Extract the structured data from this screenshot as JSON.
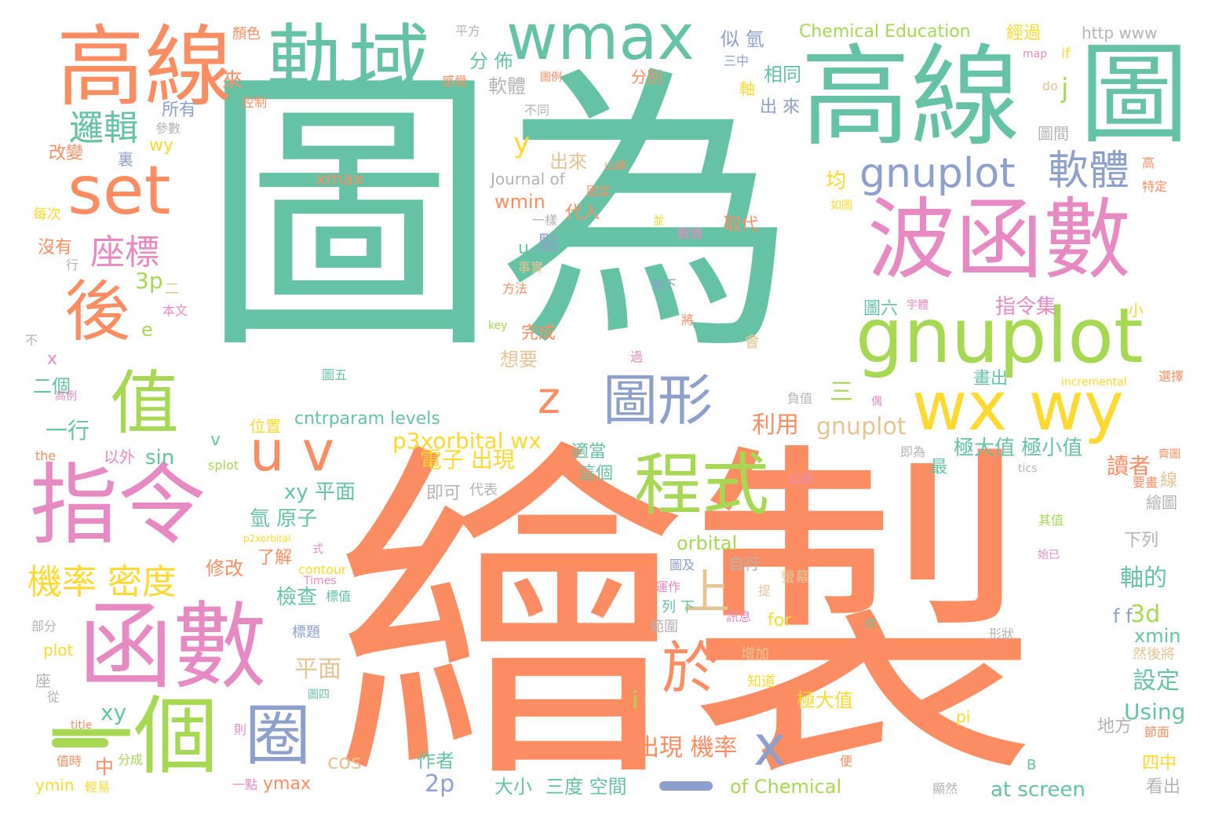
{
  "palette": {
    "teal": "#66c2a5",
    "orange": "#fc8d62",
    "blue": "#8da0cb",
    "pink": "#e78ac3",
    "lime": "#a6d854",
    "yellow": "#ffd92f",
    "tan": "#e5c494",
    "gray": "#b3b3b3"
  },
  "words": [
    {
      "text": "圖為",
      "color": "#66c2a5"
    },
    {
      "text": "繪製",
      "color": "#fc8d62"
    },
    {
      "text": "高線",
      "color": "#fc8d62"
    },
    {
      "text": "軌域",
      "color": "#66c2a5"
    },
    {
      "text": "wmax",
      "color": "#66c2a5"
    },
    {
      "text": "高線",
      "color": "#66c2a5"
    },
    {
      "text": "圖",
      "color": "#66c2a5"
    },
    {
      "text": "set",
      "color": "#fc8d62"
    },
    {
      "text": "波函數",
      "color": "#e78ac3"
    },
    {
      "text": "gnuplot",
      "color": "#a6d854"
    },
    {
      "text": "gnuplot",
      "color": "#8da0cb"
    },
    {
      "text": "軟體",
      "color": "#8da0cb"
    },
    {
      "text": "後",
      "color": "#fc8d62"
    },
    {
      "text": "值",
      "color": "#a6d854"
    },
    {
      "text": "指令",
      "color": "#e78ac3"
    },
    {
      "text": "函數",
      "color": "#e78ac3"
    },
    {
      "text": "一個",
      "color": "#a6d854"
    },
    {
      "text": "u v",
      "color": "#fc8d62"
    },
    {
      "text": "圖形",
      "color": "#8da0cb"
    },
    {
      "text": "程式",
      "color": "#a6d854"
    },
    {
      "text": "wx wy",
      "color": "#ffd92f"
    },
    {
      "text": "z",
      "color": "#fc8d62"
    },
    {
      "text": "x",
      "color": "#8da0cb"
    },
    {
      "text": "上",
      "color": "#e5c494"
    },
    {
      "text": "於",
      "color": "#fc8d62"
    },
    {
      "text": "圈",
      "color": "#8da0cb"
    },
    {
      "text": "邏輯",
      "color": "#66c2a5"
    },
    {
      "text": "座標",
      "color": "#e78ac3"
    },
    {
      "text": "機率 密度",
      "color": "#ffd92f"
    },
    {
      "text": "xmax",
      "color": "#fc8d62"
    },
    {
      "text": "Chemical Education",
      "color": "#a6d854"
    },
    {
      "text": "Journal of",
      "color": "#b3b3b3"
    },
    {
      "text": "http www",
      "color": "#b3b3b3"
    },
    {
      "text": "分 佈",
      "color": "#66c2a5"
    },
    {
      "text": "軟體",
      "color": "#b3b3b3"
    },
    {
      "text": "出來",
      "color": "#e5c494"
    },
    {
      "text": "wmin",
      "color": "#fc8d62"
    },
    {
      "text": "y",
      "color": "#ffd92f"
    },
    {
      "text": "j",
      "color": "#a6d854"
    },
    {
      "text": "相同",
      "color": "#66c2a5"
    },
    {
      "text": "出 來",
      "color": "#8da0cb"
    },
    {
      "text": "似 氫",
      "color": "#8da0cb"
    },
    {
      "text": "經過",
      "color": "#ffd92f"
    },
    {
      "text": "指令集",
      "color": "#e78ac3"
    },
    {
      "text": "均",
      "color": "#ffd92f"
    },
    {
      "text": "取代",
      "color": "#fc8d62"
    },
    {
      "text": "代入",
      "color": "#fc8d62"
    },
    {
      "text": "u",
      "color": "#66c2a5"
    },
    {
      "text": "點",
      "color": "#8da0cb"
    },
    {
      "text": "3p",
      "color": "#a6d854"
    },
    {
      "text": "完成",
      "color": "#fc8d62"
    },
    {
      "text": "想要",
      "color": "#e5c494"
    },
    {
      "text": "p3xorbital wx",
      "color": "#ffd92f"
    },
    {
      "text": "利用",
      "color": "#fc8d62"
    },
    {
      "text": "gnuplot",
      "color": "#e5c494"
    },
    {
      "text": "三",
      "color": "#a6d854"
    },
    {
      "text": "電子 出現",
      "color": "#ffd92f"
    },
    {
      "text": "cntrparam levels",
      "color": "#66c2a5"
    },
    {
      "text": "極大值 極小值",
      "color": "#66c2a5"
    },
    {
      "text": "讀者",
      "color": "#fc8d62"
    },
    {
      "text": "適當",
      "color": "#66c2a5"
    },
    {
      "text": "這個",
      "color": "#66c2a5"
    },
    {
      "text": "xy 平面",
      "color": "#66c2a5"
    },
    {
      "text": "即可",
      "color": "#b3b3b3"
    },
    {
      "text": "代表",
      "color": "#b3b3b3"
    },
    {
      "text": "氫 原子",
      "color": "#66c2a5"
    },
    {
      "text": "orbital",
      "color": "#a6d854"
    },
    {
      "text": "了解",
      "color": "#fc8d62"
    },
    {
      "text": "修改",
      "color": "#fc8d62"
    },
    {
      "text": "自行",
      "color": "#b3b3b3"
    },
    {
      "text": "軸的",
      "color": "#66c2a5"
    },
    {
      "text": "檢查",
      "color": "#66c2a5"
    },
    {
      "text": "for",
      "color": "#ffd92f"
    },
    {
      "text": "f f",
      "color": "#8da0cb"
    },
    {
      "text": "3d",
      "color": "#a6d854"
    },
    {
      "text": "xmin",
      "color": "#66c2a5"
    },
    {
      "text": "設定",
      "color": "#66c2a5"
    },
    {
      "text": "平面",
      "color": "#e5c494"
    },
    {
      "text": "極大值",
      "color": "#ffd92f"
    },
    {
      "text": "Using",
      "color": "#66c2a5"
    },
    {
      "text": "出現 機率",
      "color": "#fc8d62"
    },
    {
      "text": "xy",
      "color": "#66c2a5"
    },
    {
      "text": "cos",
      "color": "#e5c494"
    },
    {
      "text": "2p",
      "color": "#8da0cb"
    },
    {
      "text": "作者",
      "color": "#66c2a5"
    },
    {
      "text": "大小",
      "color": "#66c2a5"
    },
    {
      "text": "三度 空間",
      "color": "#66c2a5"
    },
    {
      "text": "of Chemical",
      "color": "#a6d854"
    },
    {
      "text": "at screen",
      "color": "#66c2a5"
    },
    {
      "text": "ymax",
      "color": "#fc8d62"
    },
    {
      "text": "ymin",
      "color": "#ffd92f"
    },
    {
      "text": "中",
      "color": "#fc8d62"
    },
    {
      "text": "sin",
      "color": "#66c2a5"
    },
    {
      "text": "一行",
      "color": "#66c2a5"
    },
    {
      "text": "以外",
      "color": "#e78ac3"
    },
    {
      "text": "二個",
      "color": "#66c2a5"
    },
    {
      "text": "四中",
      "color": "#ffd92f"
    },
    {
      "text": "看出",
      "color": "#b3b3b3"
    },
    {
      "text": "地方",
      "color": "#b3b3b3"
    },
    {
      "text": "圖間",
      "color": "#b3b3b3"
    },
    {
      "text": "所有",
      "color": "#8da0cb"
    },
    {
      "text": "來",
      "color": "#fc8d62"
    },
    {
      "text": "改變",
      "color": "#fc8d62"
    },
    {
      "text": "沒有",
      "color": "#fc8d62"
    },
    {
      "text": "顏色",
      "color": "#fc8d62"
    },
    {
      "text": "平方",
      "color": "#b3b3b3"
    },
    {
      "text": "wy",
      "color": "#ffd92f"
    },
    {
      "text": "裏",
      "color": "#8da0cb"
    },
    {
      "text": "每次",
      "color": "#ffd92f"
    },
    {
      "text": "e",
      "color": "#a6d854"
    },
    {
      "text": "x",
      "color": "#e78ac3"
    },
    {
      "text": "不",
      "color": "#b3b3b3"
    },
    {
      "text": "v",
      "color": "#66c2a5"
    },
    {
      "text": "i",
      "color": "#a6d854"
    },
    {
      "text": "位置",
      "color": "#ffd92f"
    },
    {
      "text": "分別",
      "color": "#fc8d62"
    },
    {
      "text": "if",
      "color": "#ffd92f"
    },
    {
      "text": "do",
      "color": "#e5c494"
    },
    {
      "text": "map",
      "color": "#e78ac3"
    },
    {
      "text": "不同",
      "color": "#b3b3b3"
    },
    {
      "text": "軸",
      "color": "#ffd92f"
    },
    {
      "text": "三中",
      "color": "#8da0cb"
    },
    {
      "text": "圖六",
      "color": "#66c2a5"
    },
    {
      "text": "小",
      "color": "#ffd92f"
    },
    {
      "text": "畫出",
      "color": "#66c2a5"
    },
    {
      "text": "最",
      "color": "#66c2a5"
    },
    {
      "text": "incremental",
      "color": "#ffd92f"
    },
    {
      "text": "tics",
      "color": "#b3b3b3"
    },
    {
      "text": "下列",
      "color": "#b3b3b3"
    },
    {
      "text": "繪圖",
      "color": "#b3b3b3"
    },
    {
      "text": "線",
      "color": "#e5c494"
    },
    {
      "text": "特定",
      "color": "#fc8d62"
    },
    {
      "text": "高",
      "color": "#fc8d62"
    },
    {
      "text": "然後將",
      "color": "#e5c494"
    },
    {
      "text": "螢幕",
      "color": "#e5c494"
    },
    {
      "text": "會",
      "color": "#e5c494"
    },
    {
      "text": "四",
      "color": "#66c2a5"
    },
    {
      "text": "範圍",
      "color": "#b3b3b3"
    },
    {
      "text": "知道",
      "color": "#ffd92f"
    },
    {
      "text": "增加",
      "color": "#e5c494"
    },
    {
      "text": "列 下",
      "color": "#66c2a5"
    },
    {
      "text": "pi",
      "color": "#ffd92f"
    },
    {
      "text": "B",
      "color": "#66c2a5"
    },
    {
      "text": "plot",
      "color": "#ffd92f"
    },
    {
      "text": "部分",
      "color": "#b3b3b3"
    },
    {
      "text": "座",
      "color": "#b3b3b3"
    },
    {
      "text": "分成",
      "color": "#a6d854"
    },
    {
      "text": "值時",
      "color": "#fc8d62"
    },
    {
      "text": "一點",
      "color": "#e78ac3"
    },
    {
      "text": "the",
      "color": "#fc8d62"
    },
    {
      "text": "splot",
      "color": "#a6d854"
    },
    {
      "text": "title",
      "color": "#fc8d62"
    },
    {
      "text": "標題",
      "color": "#8da0cb"
    },
    {
      "text": "contour",
      "color": "#ffd92f"
    },
    {
      "text": "Times",
      "color": "#e78ac3"
    },
    {
      "text": "p2xorbital",
      "color": "#ffd92f"
    },
    {
      "text": "標值",
      "color": "#66c2a5"
    },
    {
      "text": "方法",
      "color": "#fc8d62"
    },
    {
      "text": "接下",
      "color": "#8da0cb"
    },
    {
      "text": "數據",
      "color": "#e78ac3"
    },
    {
      "text": "固定",
      "color": "#fc8d62"
    },
    {
      "text": "山峰",
      "color": "#fc8d62"
    },
    {
      "text": "一樣",
      "color": "#b3b3b3"
    },
    {
      "text": "事實",
      "color": "#e5c494"
    },
    {
      "text": "key",
      "color": "#a6d854"
    },
    {
      "text": "本文",
      "color": "#e78ac3"
    },
    {
      "text": "二",
      "color": "#e5c494"
    },
    {
      "text": "山谷",
      "color": "#e78ac3"
    },
    {
      "text": "運作",
      "color": "#e78ac3"
    },
    {
      "text": "圖及",
      "color": "#8da0cb"
    },
    {
      "text": "訊息",
      "color": "#e78ac3"
    },
    {
      "text": "即為",
      "color": "#b3b3b3"
    },
    {
      "text": "其值",
      "color": "#a6d854"
    },
    {
      "text": "要畫",
      "color": "#fc8d62"
    },
    {
      "text": "顯然",
      "color": "#b3b3b3"
    },
    {
      "text": "便",
      "color": "#fc8d62"
    },
    {
      "text": "節面",
      "color": "#fc8d62"
    },
    {
      "text": "形狀",
      "color": "#b3b3b3"
    },
    {
      "text": "輕易",
      "color": "#ffd92f"
    },
    {
      "text": "從",
      "color": "#b3b3b3"
    },
    {
      "text": "則",
      "color": "#e78ac3"
    },
    {
      "text": "高例",
      "color": "#e78ac3"
    },
    {
      "text": "圖五",
      "color": "#66c2a5"
    },
    {
      "text": "圖四",
      "color": "#66c2a5"
    },
    {
      "text": "參數",
      "color": "#b3b3b3"
    },
    {
      "text": "控制",
      "color": "#fc8d62"
    },
    {
      "text": "感覺",
      "color": "#fc8d62"
    },
    {
      "text": "圖例",
      "color": "#fc8d62"
    },
    {
      "text": "行",
      "color": "#b3b3b3"
    },
    {
      "text": "宇體",
      "color": "#e78ac3"
    },
    {
      "text": "負值",
      "color": "#b3b3b3"
    },
    {
      "text": "選擇",
      "color": "#fc8d62"
    },
    {
      "text": "將",
      "color": "#fc8d62"
    },
    {
      "text": "如圖",
      "color": "#ffd92f"
    },
    {
      "text": "並",
      "color": "#ffd92f"
    },
    {
      "text": "過",
      "color": "#e78ac3"
    },
    {
      "text": "提",
      "color": "#e5c494"
    },
    {
      "text": "式",
      "color": "#e78ac3"
    },
    {
      "text": "齊圖",
      "color": "#fc8d62"
    },
    {
      "text": "始已",
      "color": "#e78ac3"
    },
    {
      "text": "偶",
      "color": "#e78ac3"
    }
  ]
}
